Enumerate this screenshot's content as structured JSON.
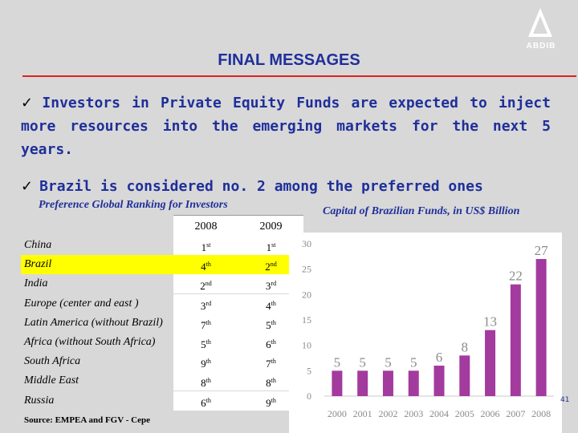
{
  "logo": {
    "text": "ABDIB"
  },
  "title": "FINAL MESSAGES",
  "bullets": [
    "Investors in Private Equity Funds are expected to inject more resources into the emerging markets for the next 5 years.",
    "Brazil is considered no. 2 among the preferred ones"
  ],
  "check_symbol": "✓",
  "table": {
    "caption": "Preference Global Ranking for Investors",
    "headers": [
      "2008",
      "2009"
    ],
    "rows": [
      {
        "label": "China",
        "y2008": "1",
        "s2008": "st",
        "y2009": "1",
        "s2009": "st"
      },
      {
        "label": "Brazil",
        "y2008": "4",
        "s2008": "th",
        "y2009": "2",
        "s2009": "nd",
        "highlight": true
      },
      {
        "label": "India",
        "y2008": "2",
        "s2008": "nd",
        "y2009": "3",
        "s2009": "rd"
      },
      {
        "label": "Europe (center and east )",
        "y2008": "3",
        "s2008": "rd",
        "y2009": "4",
        "s2009": "th"
      },
      {
        "label": "Latin America (without Brazil)",
        "y2008": "7",
        "s2008": "th",
        "y2009": "5",
        "s2009": "th"
      },
      {
        "label": "Africa (without South  Africa)",
        "y2008": "5",
        "s2008": "th",
        "y2009": "6",
        "s2009": "th"
      },
      {
        "label": "South Africa",
        "y2008": "9",
        "s2008": "th",
        "y2009": "7",
        "s2009": "th"
      },
      {
        "label": "Middle East",
        "y2008": "8",
        "s2008": "th",
        "y2009": "8",
        "s2009": "th"
      },
      {
        "label": "Russia",
        "y2008": "6",
        "s2008": "th",
        "y2009": "9",
        "s2009": "th"
      }
    ]
  },
  "source": "Source: EMPEA  and  FGV - Cepe",
  "page_number": "41",
  "colors": {
    "title": "#1f2f9a",
    "rule": "#e02020",
    "bar": "#a33a9e",
    "highlight": "#ffff00"
  },
  "chart_data": {
    "type": "bar",
    "title": "Capital of Brazilian Funds, in US$ Billion",
    "categories": [
      "2000",
      "2001",
      "2002",
      "2003",
      "2004",
      "2005",
      "2006",
      "2007",
      "2008"
    ],
    "values": [
      5,
      5,
      5,
      5,
      6,
      8,
      13,
      22,
      27
    ],
    "ylim": [
      0,
      30
    ],
    "yticks": [
      0,
      5,
      10,
      15,
      20,
      25,
      30
    ],
    "xlabel": "",
    "ylabel": "",
    "grid": false,
    "data_labels": true
  }
}
